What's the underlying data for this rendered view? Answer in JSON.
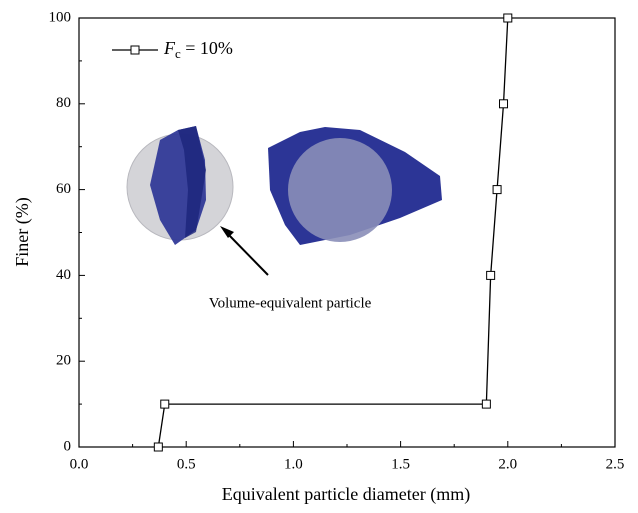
{
  "chart_data": {
    "type": "line",
    "x_label": "Equivalent particle diameter (mm)",
    "y_label": "Finer (%)",
    "annotation": "Volume-equivalent particle",
    "xlim": [
      0,
      2.5
    ],
    "ylim": [
      0,
      100
    ],
    "xticks": [
      {
        "value": 0,
        "label": "0.0"
      },
      0.5,
      {
        "value": 1,
        "label": "1.0"
      },
      1.5,
      {
        "value": 2,
        "label": "2.0"
      },
      2.5
    ],
    "yticks": [
      0,
      20,
      40,
      60,
      80,
      100
    ],
    "series": [
      {
        "name": "Fc = 10%",
        "color": "#000000",
        "x": [
          0.37,
          0.4,
          1.9,
          1.92,
          1.95,
          1.98,
          2.0
        ],
        "values": [
          0,
          10,
          10,
          40,
          60,
          80,
          100
        ]
      }
    ],
    "legend": "upper left"
  }
}
